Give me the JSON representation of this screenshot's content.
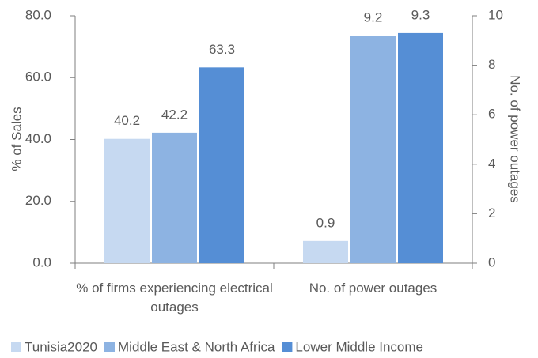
{
  "chart_data": {
    "type": "bar",
    "categories": [
      "% of firms experiencing electrical outages",
      "No. of power outages"
    ],
    "category_axes": [
      "y",
      "y2"
    ],
    "series": [
      {
        "name": "Tunisia2020",
        "color": "#c6d9f1",
        "values": [
          40.2,
          0.9
        ]
      },
      {
        "name": "Middle East & North Africa",
        "color": "#8db3e2",
        "values": [
          42.2,
          9.2
        ]
      },
      {
        "name": "Lower Middle Income",
        "color": "#558ed5",
        "values": [
          63.3,
          9.3
        ]
      }
    ],
    "ylabel": "% of Sales",
    "y2label": "No. of power outages",
    "ylim": [
      0,
      80
    ],
    "yticks": [
      {
        "value": 0,
        "label": "0.0"
      },
      {
        "value": 20,
        "label": "20.0"
      },
      {
        "value": 40,
        "label": "40.0"
      },
      {
        "value": 60,
        "label": "60.0"
      },
      {
        "value": 80,
        "label": "80.0"
      }
    ],
    "y2lim": [
      0,
      10
    ],
    "y2ticks": [
      0,
      2,
      4,
      6,
      8,
      10
    ],
    "legend": "bottom"
  }
}
